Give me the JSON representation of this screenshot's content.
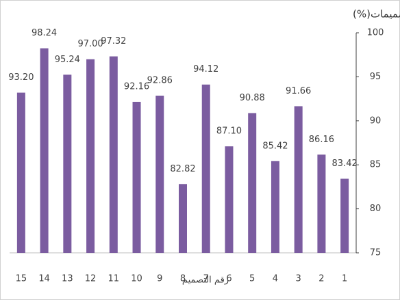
{
  "chart_data": {
    "type": "bar",
    "title": "المتوسط الوزني لدرجات تقييم المحكمين للتصميمات(%)",
    "x_label": "رقم التصميم",
    "categories": [
      "15",
      "14",
      "13",
      "12",
      "11",
      "10",
      "9",
      "8",
      "7",
      "6",
      "5",
      "4",
      "3",
      "2",
      "1"
    ],
    "values": [
      93.2,
      98.24,
      95.24,
      97.0,
      97.32,
      92.16,
      92.86,
      82.82,
      94.12,
      87.1,
      90.88,
      85.42,
      91.66,
      86.16,
      83.42
    ],
    "value_labels": [
      "93.20",
      "98.24",
      "95.24",
      "97.00",
      "97.32",
      "92.16",
      "92.86",
      "82.82",
      "94.12",
      "87.10",
      "90.88",
      "85.42",
      "91.66",
      "86.16",
      "83.42"
    ],
    "color": "#7b5ca0",
    "ylim": [
      75,
      100
    ],
    "yticks": [
      75,
      80,
      85,
      90,
      95,
      100
    ],
    "grid": false
  }
}
